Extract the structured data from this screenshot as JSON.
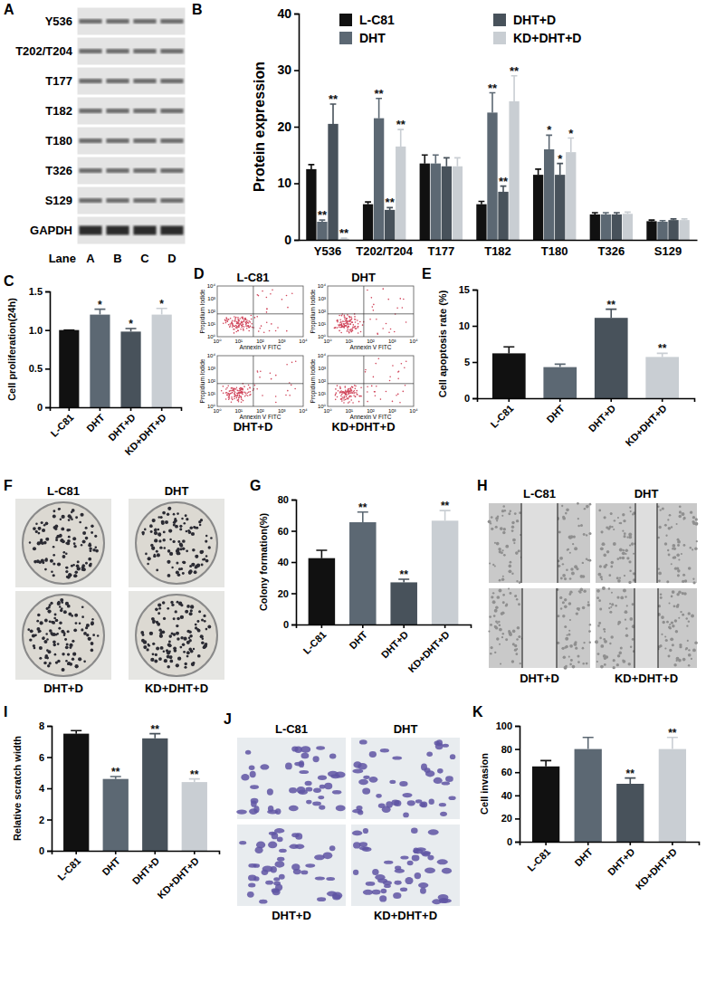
{
  "chart_data": [
    {
      "label": "B",
      "type": "bar",
      "categories": [
        "Y536",
        "T202/T204",
        "T177",
        "T182",
        "T180",
        "T326",
        "S129"
      ],
      "y_label": "Protein expression",
      "ylim": [
        0,
        40
      ],
      "yticks": [
        0,
        10,
        20,
        30,
        40
      ],
      "legend": "top",
      "series": [
        {
          "name": "L-C81",
          "color": "#111111",
          "values": [
            12.5,
            6.3,
            13.5,
            6.3,
            11.5,
            4.5,
            3.3
          ],
          "errors": [
            0.8,
            0.4,
            1.5,
            0.5,
            1.0,
            0.3,
            0.2
          ],
          "significance": [
            null,
            null,
            null,
            null,
            null,
            null,
            null
          ]
        },
        {
          "name": "DHT",
          "color": "#5c6873",
          "values": [
            3.2,
            21.5,
            13.5,
            22.5,
            16,
            4.5,
            3.2
          ],
          "errors": [
            0.3,
            3.5,
            1.5,
            3.5,
            2.5,
            0.3,
            0.2
          ],
          "significance": [
            "**",
            "**",
            null,
            "**",
            "*",
            null,
            null
          ]
        },
        {
          "name": "DHT+D",
          "color": "#48525b",
          "values": [
            20.5,
            5.3,
            13,
            8.5,
            11.5,
            4.5,
            3.5
          ],
          "errors": [
            3.5,
            0.4,
            1.5,
            1.0,
            2.0,
            0.3,
            0.2
          ],
          "significance": [
            "**",
            "**",
            null,
            "**",
            "*",
            null,
            null
          ]
        },
        {
          "name": "KD+DHT+D",
          "color": "#c9ced3",
          "values": [
            0.2,
            16.5,
            13,
            24.5,
            15.5,
            4.6,
            3.5
          ],
          "errors": [
            0.1,
            3.0,
            1.5,
            4.5,
            2.5,
            0.3,
            0.2
          ],
          "significance": [
            "**",
            "**",
            null,
            "**",
            "*",
            null,
            null
          ]
        }
      ]
    },
    {
      "label": "C",
      "type": "bar",
      "categories": [
        "L-C81",
        "DHT",
        "DHT+D",
        "KD+DHT+D"
      ],
      "values": [
        1.0,
        1.2,
        0.98,
        1.2
      ],
      "errors": [
        0,
        0.07,
        0.04,
        0.08
      ],
      "significance": [
        null,
        "*",
        "*",
        "*"
      ],
      "colors": [
        "#111111",
        "#5c6873",
        "#48525b",
        "#c9ced3"
      ],
      "y_label": "Cell proliferation(24h)",
      "ylim": [
        0,
        1.5
      ],
      "yticks": [
        0,
        0.5,
        {
          "value": 1,
          "label": "1.0"
        },
        1.5
      ]
    },
    {
      "label": "E",
      "type": "bar",
      "categories": [
        "L-C81",
        "DHT",
        "DHT+D",
        "KD+DHT+D"
      ],
      "values": [
        6.2,
        4.3,
        11.1,
        5.7
      ],
      "errors": [
        0.9,
        0.4,
        1.2,
        0.5
      ],
      "significance": [
        null,
        null,
        "**",
        "**"
      ],
      "colors": [
        "#111111",
        "#5c6873",
        "#48525b",
        "#c9ced3"
      ],
      "y_label": "Cell apoptosis rate (%)",
      "ylim": [
        0,
        15
      ],
      "yticks": [
        0,
        5,
        10,
        15
      ]
    },
    {
      "label": "G",
      "type": "bar",
      "categories": [
        "L-C81",
        "DHT",
        "DHT+D",
        "KD+DHT+D"
      ],
      "values": [
        42.5,
        65.5,
        27,
        66.5
      ],
      "errors": [
        5,
        6.5,
        2,
        6.5
      ],
      "significance": [
        null,
        "**",
        "**",
        "**"
      ],
      "colors": [
        "#111111",
        "#5c6873",
        "#48525b",
        "#c9ced3"
      ],
      "y_label": "Colony formation(%)",
      "ylim": [
        0,
        80
      ],
      "yticks": [
        0,
        20,
        40,
        60,
        80
      ]
    },
    {
      "label": "I",
      "type": "bar",
      "categories": [
        "L-C81",
        "DHT",
        "DHT+D",
        "KD+DHT+D"
      ],
      "values": [
        7.5,
        4.6,
        7.2,
        4.4
      ],
      "errors": [
        0.2,
        0.15,
        0.3,
        0.2
      ],
      "significance": [
        null,
        "**",
        "**",
        "**"
      ],
      "colors": [
        "#111111",
        "#5c6873",
        "#48525b",
        "#c9ced3"
      ],
      "y_label": "Relative scratch width",
      "ylim": [
        0,
        8
      ],
      "yticks": [
        0,
        2,
        4,
        6,
        8
      ]
    },
    {
      "label": "K",
      "type": "bar",
      "categories": [
        "L-C81",
        "DHT",
        "DHT+D",
        "KD+DHT+D"
      ],
      "values": [
        65,
        80,
        50,
        80
      ],
      "errors": [
        5,
        10,
        5,
        10
      ],
      "significance": [
        null,
        null,
        "**",
        "**"
      ],
      "colors": [
        "#111111",
        "#5c6873",
        "#48525b",
        "#c9ced3"
      ],
      "y_label": "Cell invasion",
      "ylim": [
        0,
        100
      ],
      "yticks": [
        0,
        20,
        40,
        60,
        80,
        100
      ]
    }
  ],
  "figures": [
    {
      "label": "A",
      "type": "western_blot",
      "rows": [
        "Y536",
        "T202/T204",
        "T177",
        "T182",
        "T180",
        "T326",
        "S129",
        "GAPDH"
      ],
      "lane_title": "Lane",
      "lanes": [
        "A",
        "B",
        "C",
        "D"
      ]
    },
    {
      "label": "D",
      "type": "flow_cytometry",
      "titles": [
        "L-C81",
        "DHT",
        "DHT+D",
        "KD+DHT+D"
      ],
      "x_label": "Annexin V FITC",
      "y_label": "Propidium Iodide",
      "ticks": [
        "10⁰",
        "10¹",
        "10²",
        "10³",
        "10⁴"
      ]
    },
    {
      "label": "F",
      "type": "colony_plates",
      "titles": [
        "L-C81",
        "DHT",
        "DHT+D",
        "KD+DHT+D"
      ]
    },
    {
      "label": "H",
      "type": "scratch",
      "titles": [
        "L-C81",
        "DHT",
        "DHT+D",
        "KD+DHT+D"
      ]
    },
    {
      "label": "J",
      "type": "transwell",
      "titles": [
        "L-C81",
        "DHT",
        "DHT+D",
        "KD+DHT+D"
      ]
    }
  ]
}
